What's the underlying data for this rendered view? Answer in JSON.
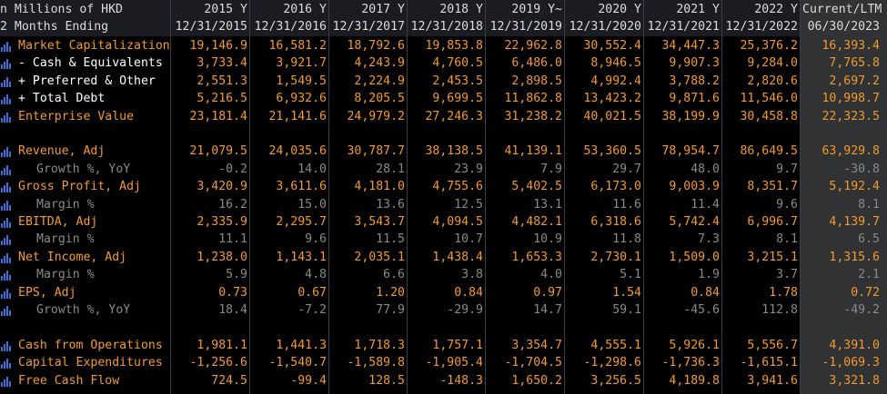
{
  "header": {
    "label_line1": "n Millions of HKD",
    "label_line2": "2 Months Ending",
    "periods": [
      "2015 Y",
      "2016 Y",
      "2017 Y",
      "2018 Y",
      "2019 Y~",
      "2020 Y",
      "2021 Y",
      "2022 Y",
      "Current/LTM"
    ],
    "dates": [
      "12/31/2015",
      "12/31/2016",
      "12/31/2017",
      "12/31/2018",
      "12/31/2019",
      "12/31/2020",
      "12/31/2021",
      "12/31/2022",
      "06/30/2023"
    ]
  },
  "rows": [
    {
      "label": "Market Capitalization",
      "style": "main",
      "icon": "bar-chart-icon",
      "values": [
        "19,146.9",
        "16,581.2",
        "18,792.6",
        "19,853.8",
        "22,962.8",
        "30,552.4",
        "34,447.3",
        "25,376.2",
        "16,393.4"
      ]
    },
    {
      "label": "- Cash & Equivalents",
      "style": "white",
      "icon": "bar-chart-icon",
      "values": [
        "3,733.4",
        "3,921.7",
        "4,243.9",
        "4,760.5",
        "6,486.0",
        "8,946.5",
        "9,907.3",
        "9,284.0",
        "7,765.8"
      ]
    },
    {
      "label": "+ Preferred & Other",
      "style": "white",
      "icon": "bar-chart-icon",
      "values": [
        "2,551.3",
        "1,549.5",
        "2,224.9",
        "2,453.5",
        "2,898.5",
        "4,992.4",
        "3,788.2",
        "2,820.6",
        "2,697.2"
      ]
    },
    {
      "label": "+ Total Debt",
      "style": "white",
      "icon": "bar-chart-icon",
      "values": [
        "5,216.5",
        "6,932.6",
        "8,205.5",
        "9,699.5",
        "11,862.8",
        "13,423.2",
        "9,871.6",
        "11,546.0",
        "10,998.7"
      ]
    },
    {
      "label": "Enterprise Value",
      "style": "main",
      "icon": "bar-chart-icon",
      "values": [
        "23,181.4",
        "21,141.6",
        "24,979.2",
        "27,246.3",
        "31,238.2",
        "40,021.5",
        "38,199.9",
        "30,458.8",
        "22,323.5"
      ]
    },
    {
      "label": "",
      "style": "blank",
      "icon": "",
      "values": []
    },
    {
      "label": "Revenue, Adj",
      "style": "main",
      "icon": "bar-chart-icon",
      "values": [
        "21,079.5",
        "24,035.6",
        "30,787.7",
        "38,138.5",
        "41,139.1",
        "53,360.5",
        "78,954.7",
        "86,649.5",
        "63,929.8"
      ]
    },
    {
      "label": "Growth %, YoY",
      "style": "sub",
      "icon": "bar-chart-icon",
      "values": [
        "-0.2",
        "14.0",
        "28.1",
        "23.9",
        "7.9",
        "29.7",
        "48.0",
        "9.7",
        "-30.8"
      ]
    },
    {
      "label": "Gross Profit, Adj",
      "style": "main",
      "icon": "bar-chart-icon",
      "values": [
        "3,420.9",
        "3,611.6",
        "4,181.0",
        "4,755.6",
        "5,402.5",
        "6,173.0",
        "9,003.9",
        "8,351.7",
        "5,192.4"
      ]
    },
    {
      "label": "Margin %",
      "style": "sub",
      "icon": "bar-chart-icon",
      "values": [
        "16.2",
        "15.0",
        "13.6",
        "12.5",
        "13.1",
        "11.6",
        "11.4",
        "9.6",
        "8.1"
      ]
    },
    {
      "label": "EBITDA, Adj",
      "style": "main",
      "icon": "bar-chart-icon",
      "values": [
        "2,335.9",
        "2,295.7",
        "3,543.7",
        "4,094.5",
        "4,482.1",
        "6,318.6",
        "5,742.4",
        "6,996.7",
        "4,139.7"
      ]
    },
    {
      "label": "Margin %",
      "style": "sub",
      "icon": "bar-chart-icon",
      "values": [
        "11.1",
        "9.6",
        "11.5",
        "10.7",
        "10.9",
        "11.8",
        "7.3",
        "8.1",
        "6.5"
      ]
    },
    {
      "label": "Net Income, Adj",
      "style": "main",
      "icon": "bar-chart-icon",
      "values": [
        "1,238.0",
        "1,143.1",
        "2,035.1",
        "1,438.4",
        "1,653.3",
        "2,730.1",
        "1,509.0",
        "3,215.1",
        "1,315.6"
      ]
    },
    {
      "label": "Margin %",
      "style": "sub",
      "icon": "bar-chart-icon",
      "values": [
        "5.9",
        "4.8",
        "6.6",
        "3.8",
        "4.0",
        "5.1",
        "1.9",
        "3.7",
        "2.1"
      ]
    },
    {
      "label": "EPS, Adj",
      "style": "main",
      "icon": "bar-chart-icon",
      "values": [
        "0.73",
        "0.67",
        "1.20",
        "0.84",
        "0.97",
        "1.54",
        "0.84",
        "1.78",
        "0.72"
      ]
    },
    {
      "label": "Growth %, YoY",
      "style": "sub",
      "icon": "bar-chart-icon",
      "values": [
        "18.4",
        "-7.2",
        "77.9",
        "-29.9",
        "14.7",
        "59.1",
        "-45.6",
        "112.8",
        "-49.2"
      ]
    },
    {
      "label": "",
      "style": "blank",
      "icon": "",
      "values": []
    },
    {
      "label": "Cash from Operations",
      "style": "main",
      "icon": "bar-chart-icon",
      "values": [
        "1,981.1",
        "1,441.3",
        "1,718.3",
        "1,757.1",
        "3,354.7",
        "4,555.1",
        "5,926.1",
        "5,556.7",
        "4,391.0"
      ]
    },
    {
      "label": "Capital Expenditures",
      "style": "main",
      "icon": "bar-chart-icon",
      "values": [
        "-1,256.6",
        "-1,540.7",
        "-1,589.8",
        "-1,905.4",
        "-1,704.5",
        "-1,298.6",
        "-1,736.3",
        "-1,615.1",
        "-1,069.3"
      ]
    },
    {
      "label": "Free Cash Flow",
      "style": "main",
      "icon": "bar-chart-icon",
      "values": [
        "724.5",
        "-99.4",
        "128.5",
        "-148.3",
        "1,650.2",
        "3,256.5",
        "4,189.8",
        "3,941.6",
        "3,321.8"
      ]
    }
  ],
  "colors": {
    "orange": "#f29a2e",
    "white": "#ffffff",
    "grey": "#8a8a8a",
    "icon_blue": "#3a6fd8",
    "ltm_bg": "#303234",
    "header_bg": "#1a1c22"
  }
}
